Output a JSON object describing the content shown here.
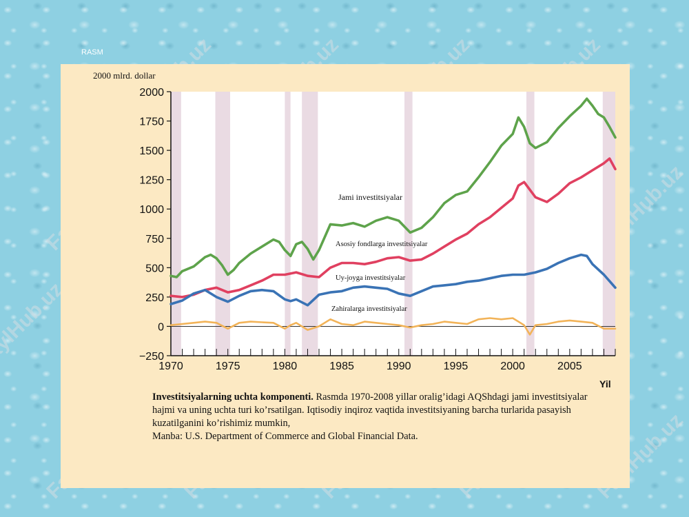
{
  "slide": {
    "label": "RASM"
  },
  "chart_data": {
    "type": "line",
    "ylabel": "2000 mlrd. dollar",
    "xlabel": "Yil",
    "xlim": [
      1970,
      2009
    ],
    "ylim": [
      -250,
      2000
    ],
    "xticks": [
      1970,
      1975,
      1980,
      1985,
      1990,
      1995,
      2000,
      2005
    ],
    "yticks": [
      -250,
      0,
      250,
      500,
      750,
      1000,
      1250,
      1500,
      1750,
      2000
    ],
    "grid": false,
    "recessions": [
      [
        1970,
        1970.9
      ],
      [
        1973.9,
        1975.2
      ],
      [
        1980,
        1980.5
      ],
      [
        1981.5,
        1982.9
      ],
      [
        1990.5,
        1991.2
      ],
      [
        2001.2,
        2001.9
      ],
      [
        2007.9,
        2009
      ]
    ],
    "series": [
      {
        "name": "Jami investitsiyalar",
        "color": "#5ea34b",
        "x": [
          1970,
          1970.5,
          1971,
          1972,
          1973,
          1973.5,
          1974,
          1974.5,
          1975,
          1975.5,
          1976,
          1977,
          1978,
          1979,
          1979.5,
          1980,
          1980.5,
          1981,
          1981.5,
          1982,
          1982.5,
          1983,
          1984,
          1985,
          1986,
          1987,
          1988,
          1989,
          1990,
          1991,
          1992,
          1993,
          1994,
          1995,
          1996,
          1997,
          1998,
          1999,
          2000,
          2000.5,
          2001,
          2001.5,
          2002,
          2003,
          2004,
          2005,
          2006,
          2006.5,
          2007,
          2007.5,
          2008,
          2008.5,
          2009
        ],
        "y": [
          430,
          420,
          470,
          510,
          590,
          610,
          580,
          520,
          440,
          480,
          540,
          620,
          680,
          740,
          720,
          650,
          600,
          700,
          720,
          660,
          570,
          650,
          870,
          860,
          880,
          850,
          900,
          930,
          900,
          800,
          840,
          930,
          1050,
          1120,
          1150,
          1270,
          1400,
          1540,
          1640,
          1780,
          1700,
          1560,
          1520,
          1570,
          1690,
          1790,
          1880,
          1940,
          1880,
          1810,
          1780,
          1700,
          1610
        ]
      },
      {
        "name": "Asosiy fondlarga investitsiyalar",
        "color": "#e04060",
        "x": [
          1970,
          1971,
          1972,
          1973,
          1974,
          1975,
          1976,
          1977,
          1978,
          1979,
          1980,
          1981,
          1982,
          1983,
          1984,
          1985,
          1986,
          1987,
          1988,
          1989,
          1990,
          1991,
          1992,
          1993,
          1994,
          1995,
          1996,
          1997,
          1998,
          1999,
          2000,
          2000.5,
          2001,
          2002,
          2003,
          2004,
          2005,
          2006,
          2007,
          2008,
          2008.5,
          2009
        ],
        "y": [
          260,
          250,
          270,
          310,
          330,
          290,
          310,
          350,
          390,
          440,
          440,
          460,
          430,
          420,
          500,
          540,
          540,
          530,
          550,
          580,
          590,
          560,
          570,
          620,
          680,
          740,
          790,
          870,
          930,
          1010,
          1090,
          1200,
          1230,
          1100,
          1060,
          1130,
          1220,
          1270,
          1330,
          1390,
          1430,
          1340
        ]
      },
      {
        "name": "Uy-joyga investitsiyalar",
        "color": "#3a73b5",
        "x": [
          1970,
          1971,
          1972,
          1973,
          1974,
          1975,
          1976,
          1977,
          1978,
          1979,
          1980,
          1980.5,
          1981,
          1982,
          1983,
          1984,
          1985,
          1986,
          1987,
          1988,
          1989,
          1990,
          1991,
          1992,
          1993,
          1994,
          1995,
          1996,
          1997,
          1998,
          1999,
          2000,
          2001,
          2002,
          2003,
          2004,
          2005,
          2006,
          2006.5,
          2007,
          2008,
          2009
        ],
        "y": [
          190,
          220,
          280,
          310,
          250,
          210,
          260,
          300,
          310,
          300,
          230,
          215,
          230,
          180,
          270,
          290,
          300,
          330,
          340,
          330,
          320,
          280,
          260,
          300,
          340,
          350,
          360,
          380,
          390,
          410,
          430,
          440,
          440,
          460,
          490,
          540,
          580,
          610,
          600,
          530,
          440,
          330
        ]
      },
      {
        "name": "Zahiralarga investitsiyalar",
        "color": "#f2b358",
        "x": [
          1970,
          1971,
          1972,
          1973,
          1974,
          1975,
          1976,
          1977,
          1978,
          1979,
          1980,
          1980.5,
          1981,
          1982,
          1983,
          1984,
          1985,
          1986,
          1987,
          1988,
          1989,
          1990,
          1991,
          1992,
          1993,
          1994,
          1995,
          1996,
          1997,
          1998,
          1999,
          2000,
          2001,
          2001.5,
          2002,
          2003,
          2004,
          2005,
          2006,
          2007,
          2008,
          2009
        ],
        "y": [
          10,
          20,
          30,
          40,
          30,
          -20,
          30,
          40,
          35,
          30,
          -20,
          10,
          30,
          -30,
          0,
          60,
          20,
          10,
          40,
          30,
          20,
          10,
          -10,
          10,
          20,
          40,
          30,
          20,
          60,
          70,
          60,
          70,
          10,
          -70,
          10,
          20,
          40,
          50,
          40,
          30,
          -20,
          -20
        ]
      }
    ]
  },
  "series_labels": [
    "Jami investitsiyalar",
    "Asosiy fondlarga investitsiyalar",
    "Uy-joyga investitsiyalar",
    "Zahiralarga investitsiyalar"
  ],
  "caption": {
    "title": "Investitsiyalarning uchta komponenti.",
    "body": " Rasmda 1970-2008 yillar oralig’idagi AQShdagi jami investitsiyalar hajmi va uning uchta turi ko’rsatilgan. Iqtisodiy inqiroz vaqtida investitsiyaning barcha turlarida pasayish kuzatilganini ko’rishimiz mumkin,",
    "source": "Manba: U.S. Department of Commerce and Global Financial Data."
  },
  "watermark": {
    "text": "FaylHub.uz"
  }
}
